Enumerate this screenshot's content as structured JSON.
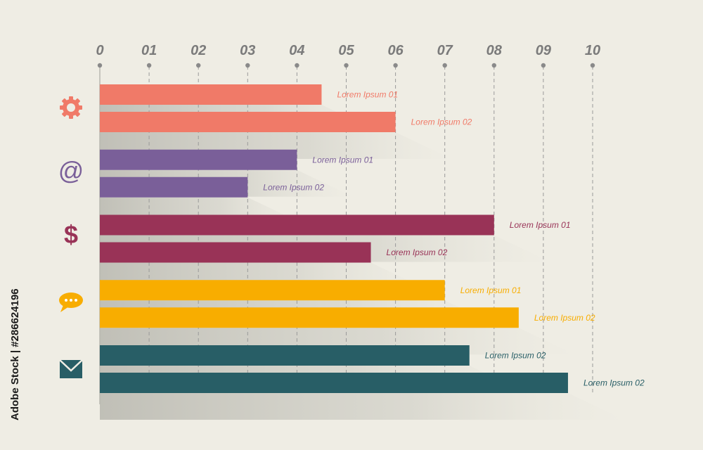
{
  "chart_data": {
    "type": "bar",
    "orientation": "horizontal",
    "title": "",
    "xlabel": "",
    "ylabel": "",
    "xlim": [
      0,
      10
    ],
    "x_ticks": [
      "0",
      "01",
      "02",
      "03",
      "04",
      "05",
      "06",
      "07",
      "08",
      "09",
      "10"
    ],
    "grid": "vertical-dashed",
    "legend": "none",
    "groups": [
      {
        "icon": "gear-icon",
        "color": "#f07a68",
        "bars": [
          {
            "label": "Lorem Ipsum 01",
            "value": 4.5
          },
          {
            "label": "Lorem Ipsum 02",
            "value": 6.0
          }
        ]
      },
      {
        "icon": "at-sign-icon",
        "color": "#7a5f99",
        "bars": [
          {
            "label": "Lorem Ipsum 01",
            "value": 4.0
          },
          {
            "label": "Lorem Ipsum 02",
            "value": 3.0
          }
        ]
      },
      {
        "icon": "dollar-icon",
        "color": "#993357",
        "bars": [
          {
            "label": "Lorem Ipsum 01",
            "value": 8.0
          },
          {
            "label": "Lorem Ipsum 02",
            "value": 5.5
          }
        ]
      },
      {
        "icon": "chat-bubble-icon",
        "color": "#f8ad00",
        "bars": [
          {
            "label": "Lorem Ipsum 01",
            "value": 7.0
          },
          {
            "label": "Lorem Ipsum 02",
            "value": 8.5
          }
        ]
      },
      {
        "icon": "envelope-icon",
        "color": "#285e66",
        "bars": [
          {
            "label": "Lorem Ipsum 02",
            "value": 7.5
          },
          {
            "label": "Lorem Ipsum 02",
            "value": 9.5
          }
        ]
      }
    ]
  },
  "watermark": "Adobe Stock | #286624196"
}
